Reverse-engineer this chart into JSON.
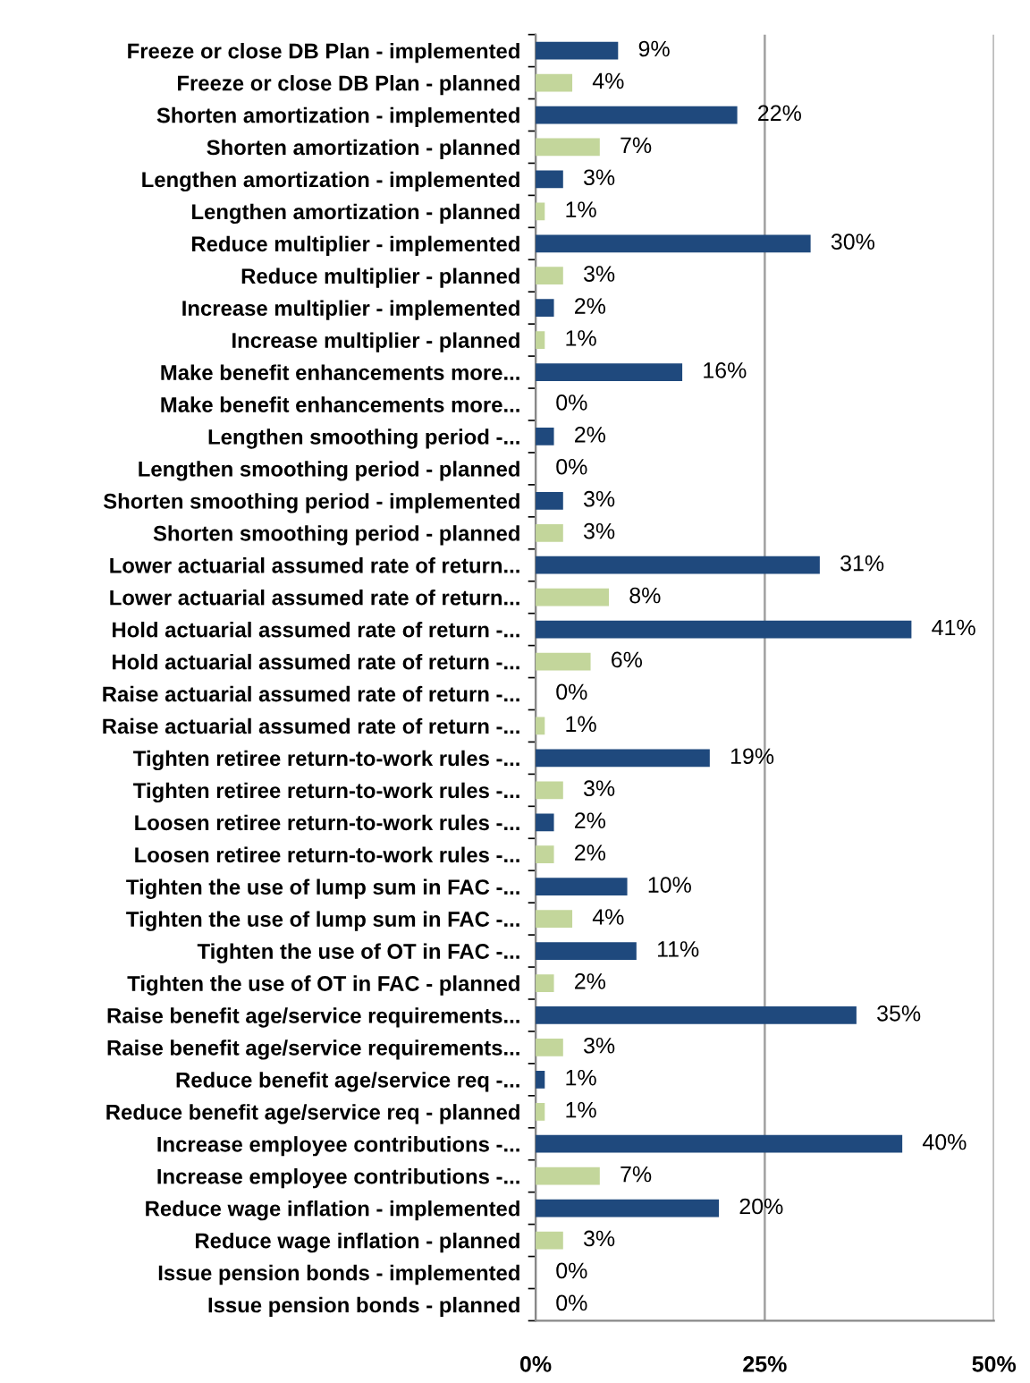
{
  "chart_data": {
    "type": "bar",
    "orientation": "horizontal",
    "categories": [
      "Freeze or close DB Plan - implemented",
      "Freeze or close DB Plan - planned",
      "Shorten amortization - implemented",
      "Shorten amortization - planned",
      "Lengthen amortization - implemented",
      "Lengthen amortization - planned",
      "Reduce multiplier - implemented",
      "Reduce multiplier - planned",
      "Increase multiplier - implemented",
      "Increase multiplier - planned",
      "Make benefit enhancements more...",
      "Make benefit enhancements more...",
      "Lengthen smoothing period -...",
      "Lengthen smoothing period - planned",
      "Shorten smoothing period - implemented",
      "Shorten smoothing period - planned",
      "Lower actuarial assumed rate of return...",
      "Lower actuarial assumed rate of return...",
      "Hold actuarial assumed rate of return -...",
      "Hold actuarial assumed rate of return -...",
      "Raise actuarial assumed rate of return -...",
      "Raise actuarial assumed rate of return -...",
      "Tighten retiree return-to-work rules -...",
      "Tighten retiree return-to-work rules -...",
      "Loosen retiree return-to-work rules -...",
      "Loosen retiree return-to-work rules -...",
      "Tighten the use of lump sum in FAC -...",
      "Tighten the use of lump sum in FAC -...",
      "Tighten the use of OT in FAC -...",
      "Tighten the use of OT in FAC - planned",
      "Raise benefit age/service requirements...",
      "Raise benefit age/service requirements...",
      "Reduce benefit age/service req -...",
      "Reduce benefit age/service req - planned",
      "Increase employee contributions -...",
      "Increase employee contributions -...",
      "Reduce wage inflation - implemented",
      "Reduce wage inflation - planned",
      "Issue pension bonds - implemented",
      "Issue pension bonds - planned"
    ],
    "values": [
      9,
      4,
      22,
      7,
      3,
      1,
      30,
      3,
      2,
      1,
      16,
      0,
      2,
      0,
      3,
      3,
      31,
      8,
      41,
      6,
      0,
      1,
      19,
      3,
      2,
      2,
      10,
      4,
      11,
      2,
      35,
      3,
      1,
      1,
      40,
      7,
      20,
      3,
      0,
      0
    ],
    "value_labels": [
      "9%",
      "4%",
      "22%",
      "7%",
      "3%",
      "1%",
      "30%",
      "3%",
      "2%",
      "1%",
      "16%",
      "0%",
      "2%",
      "0%",
      "3%",
      "3%",
      "31%",
      "8%",
      "41%",
      "6%",
      "0%",
      "1%",
      "19%",
      "3%",
      "2%",
      "2%",
      "10%",
      "4%",
      "11%",
      "2%",
      "35%",
      "3%",
      "1%",
      "1%",
      "40%",
      "7%",
      "20%",
      "3%",
      "0%",
      "0%"
    ],
    "colors": [
      "#1f497d",
      "#c3d69b",
      "#1f497d",
      "#c3d69b",
      "#1f497d",
      "#c3d69b",
      "#1f497d",
      "#c3d69b",
      "#1f497d",
      "#c3d69b",
      "#1f497d",
      "#c3d69b",
      "#1f497d",
      "#c3d69b",
      "#1f497d",
      "#c3d69b",
      "#1f497d",
      "#c3d69b",
      "#1f497d",
      "#c3d69b",
      "#1f497d",
      "#c3d69b",
      "#1f497d",
      "#c3d69b",
      "#1f497d",
      "#c3d69b",
      "#1f497d",
      "#c3d69b",
      "#1f497d",
      "#c3d69b",
      "#1f497d",
      "#c3d69b",
      "#1f497d",
      "#c3d69b",
      "#1f497d",
      "#c3d69b",
      "#1f497d",
      "#c3d69b",
      "#1f497d",
      "#c3d69b"
    ],
    "xlim": [
      0,
      50
    ],
    "xticks": [
      {
        "value": 0,
        "label": "0%"
      },
      {
        "value": 25,
        "label": "25%"
      },
      {
        "value": 50,
        "label": "50%"
      }
    ],
    "grid": "x"
  }
}
